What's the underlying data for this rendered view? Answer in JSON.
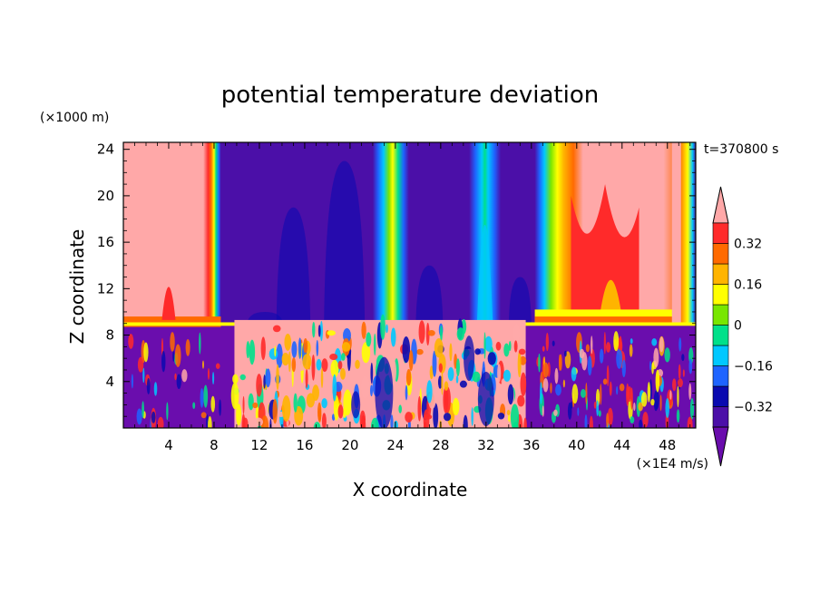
{
  "chart_data": {
    "type": "heatmap",
    "title": "potential temperature deviation",
    "xlabel": "X coordinate",
    "ylabel": "Z coordinate",
    "x_unit": "(×1E4 m/s)",
    "y_unit": "(×1000 m)",
    "time_label": "t=370800 s",
    "xlim": [
      0,
      50.5
    ],
    "ylim": [
      0,
      24.6
    ],
    "x_ticks": [
      4,
      8,
      12,
      16,
      20,
      24,
      28,
      32,
      36,
      40,
      44,
      48
    ],
    "x_tick_labels": [
      "4",
      "8",
      "12",
      "16",
      "20",
      "24",
      "28",
      "32",
      "36",
      "40",
      "44",
      "48"
    ],
    "y_ticks": [
      4,
      8,
      12,
      16,
      20,
      24
    ],
    "y_tick_labels": [
      "4",
      "8",
      "12",
      "16",
      "20",
      "24"
    ],
    "colorbar": {
      "levels": [
        -0.4,
        -0.32,
        -0.24,
        -0.16,
        -0.08,
        0,
        0.08,
        0.16,
        0.24,
        0.32,
        0.4
      ],
      "labels": [
        {
          "value": -0.32,
          "text": "−0.32"
        },
        {
          "value": -0.16,
          "text": "−0.16"
        },
        {
          "value": 0,
          "text": "0"
        },
        {
          "value": 0.16,
          "text": "0.16"
        },
        {
          "value": 0.32,
          "text": "0.32"
        }
      ],
      "colors": [
        "#6a0dad",
        "#4b0fa8",
        "#0a0ab0",
        "#1e64ff",
        "#00c8ff",
        "#00e08a",
        "#78e600",
        "#ffff00",
        "#ffb400",
        "#ff6a00",
        "#ff2a2a",
        "#ffa8a8"
      ]
    },
    "features": [
      {
        "kind": "background",
        "value": -0.45,
        "z": [
          9,
          24.6
        ]
      },
      {
        "kind": "background",
        "value": -0.45,
        "z": [
          0,
          9
        ]
      },
      {
        "kind": "warm_column",
        "x": [
          0,
          8.5
        ],
        "z": [
          9,
          24.6
        ],
        "peak": 0.45
      },
      {
        "kind": "warm_column",
        "x": [
          38,
          50.5
        ],
        "z": [
          9,
          24.6
        ],
        "peak": 0.45
      },
      {
        "kind": "warm_column",
        "x": [
          22,
          25
        ],
        "z": [
          9,
          24.6
        ],
        "peak": 0.1
      },
      {
        "kind": "warm_column",
        "x": [
          30.5,
          33
        ],
        "z": [
          9,
          24.6
        ],
        "peak": -0.05
      },
      {
        "kind": "warm_column",
        "x": [
          36,
          38
        ],
        "z": [
          9,
          24.6
        ],
        "peak": 0.2
      },
      {
        "kind": "turbulent_layer",
        "x": [
          9.5,
          35.5
        ],
        "z": [
          0,
          9
        ],
        "peak": 0.45
      }
    ]
  }
}
